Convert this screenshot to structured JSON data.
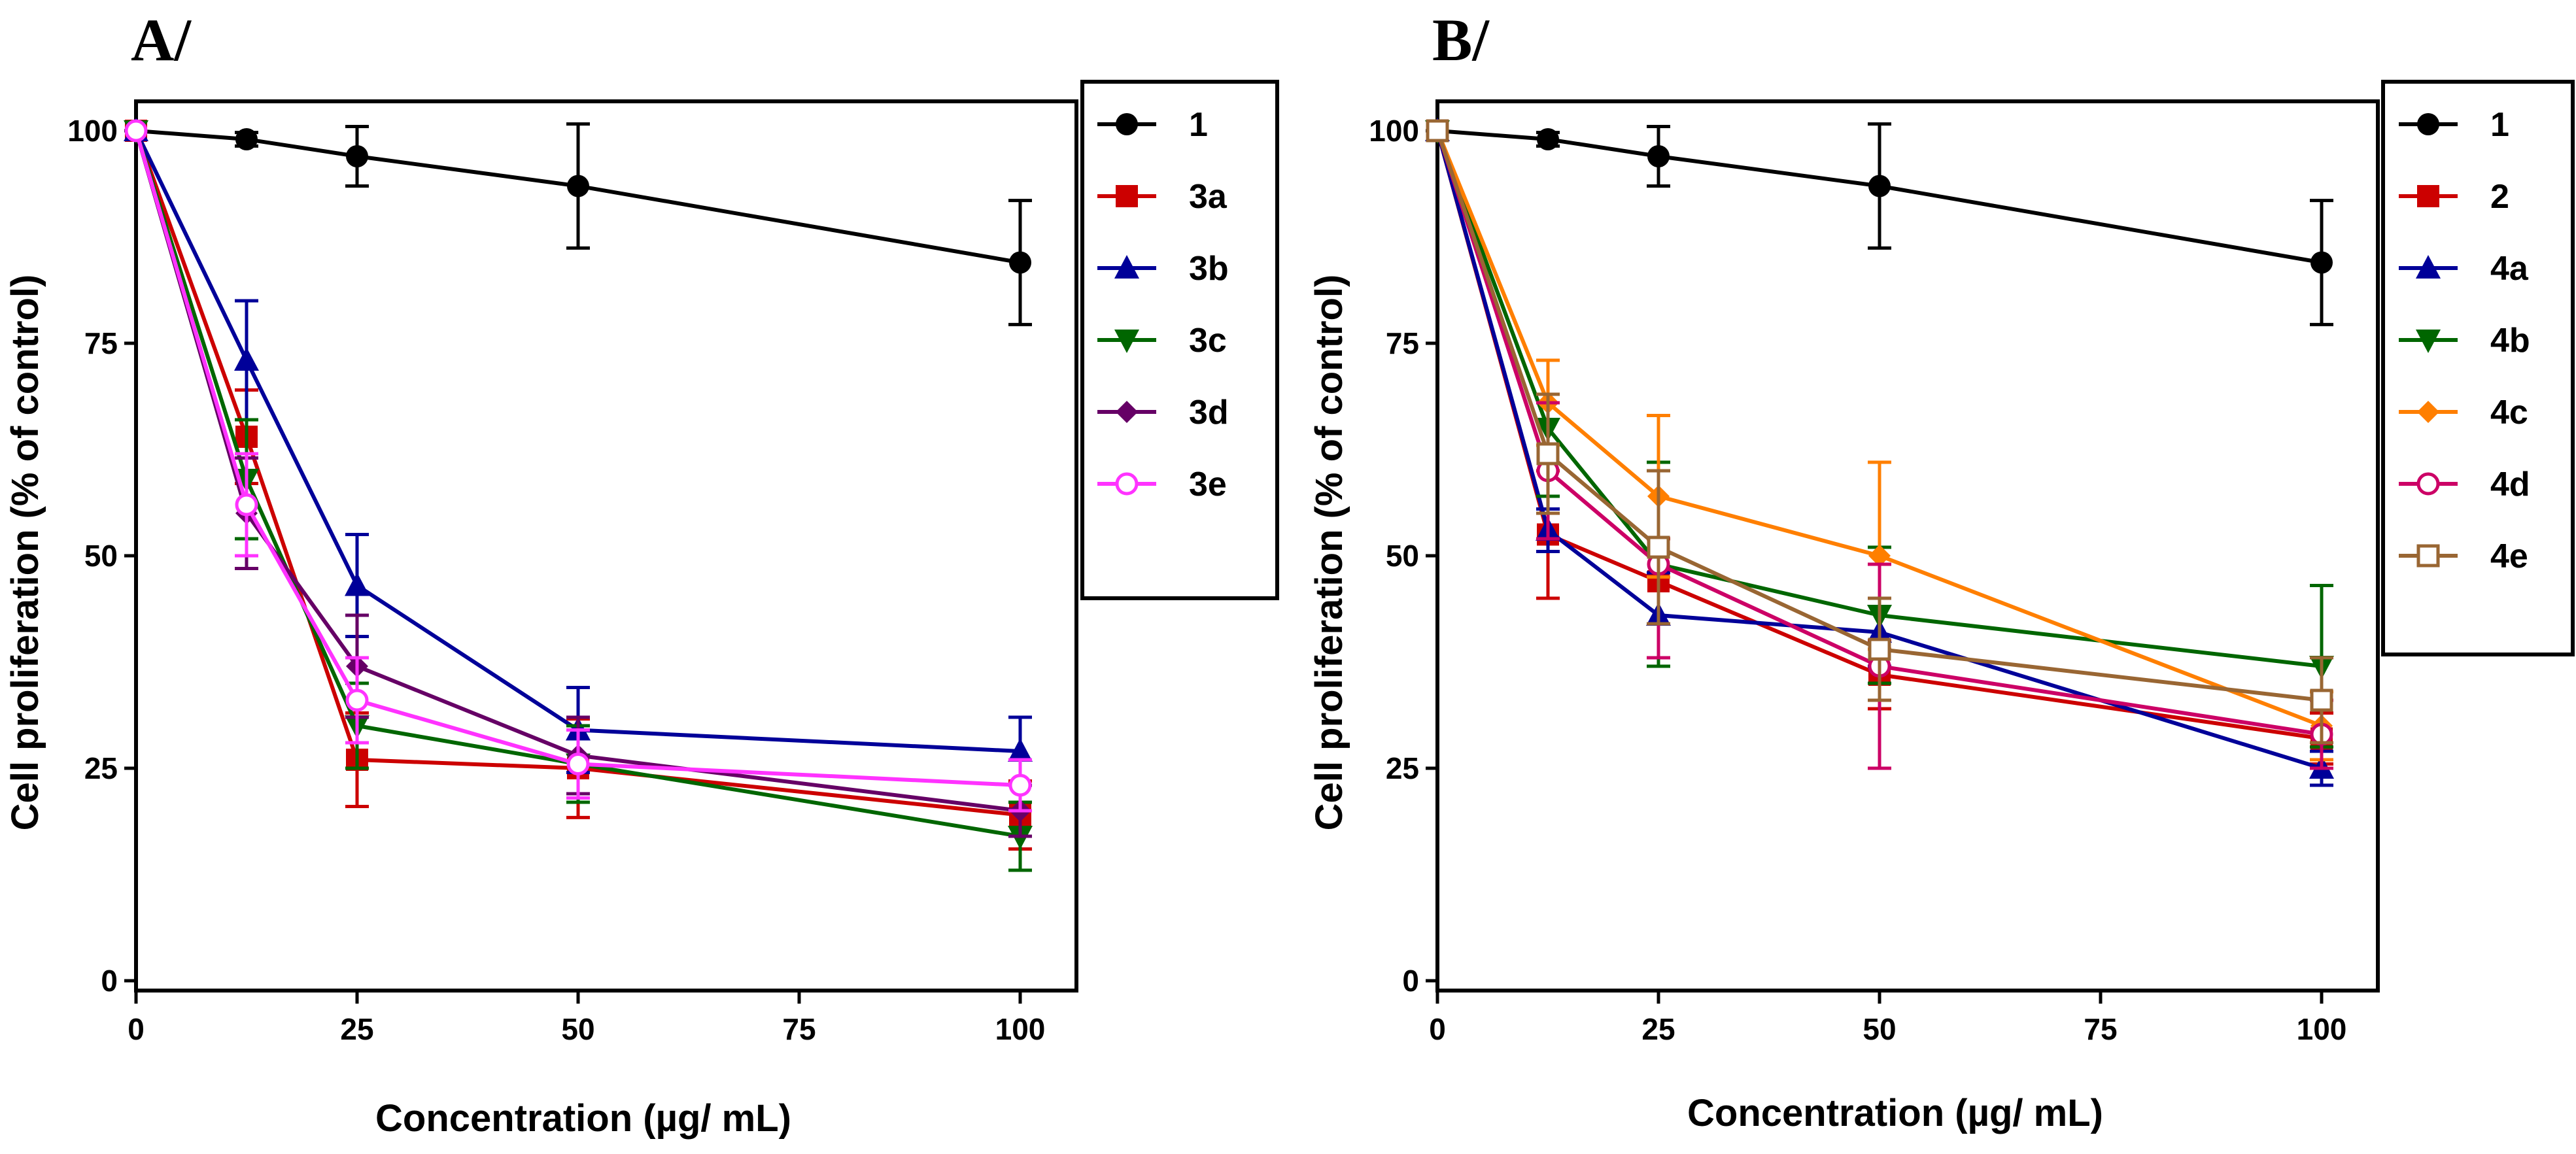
{
  "chart_data": [
    {
      "type": "line",
      "panel_label": "A/",
      "xlabel": "Concentration (µg/ mL)",
      "ylabel": "Cell proliferation (% of control)",
      "xlim": [
        0,
        100
      ],
      "ylim": [
        0,
        100
      ],
      "x_ticks": [
        "0",
        "25",
        "50",
        "75",
        "100"
      ],
      "y_ticks": [
        "0",
        "25",
        "50",
        "75",
        "100"
      ],
      "x": [
        0,
        12.5,
        25,
        50,
        100
      ],
      "legend_position": "right",
      "series": [
        {
          "name": "1",
          "color": "#000000",
          "marker": "circle-filled",
          "values": [
            100,
            99,
            97,
            93.5,
            84.5
          ],
          "errors": [
            0,
            0.8,
            3.5,
            7.3,
            7.3
          ]
        },
        {
          "name": "3a",
          "color": "#cc0000",
          "marker": "square-filled",
          "values": [
            100,
            64,
            26,
            25,
            19.5
          ],
          "errors": [
            0,
            5.5,
            5.5,
            5.8,
            4
          ]
        },
        {
          "name": "3b",
          "color": "#000099",
          "marker": "triangle-up",
          "values": [
            100,
            73,
            46.5,
            29.5,
            27
          ],
          "errors": [
            0,
            7,
            6,
            5,
            4
          ]
        },
        {
          "name": "3c",
          "color": "#006600",
          "marker": "triangle-down",
          "values": [
            100,
            59,
            30,
            25.5,
            17
          ],
          "errors": [
            0,
            7,
            5,
            4.5,
            4
          ]
        },
        {
          "name": "3d",
          "color": "#660066",
          "marker": "diamond-filled",
          "values": [
            100,
            55,
            37,
            26.5,
            20
          ],
          "errors": [
            0,
            6.5,
            6,
            4.5,
            3
          ]
        },
        {
          "name": "3e",
          "color": "#ff33ff",
          "marker": "circle-open",
          "values": [
            100,
            56,
            33,
            25.5,
            23
          ],
          "errors": [
            0,
            6,
            5,
            4,
            3
          ]
        }
      ]
    },
    {
      "type": "line",
      "panel_label": "B/",
      "xlabel": "Concentration (µg/ mL)",
      "ylabel": "Cell proliferation (% of control)",
      "xlim": [
        0,
        100
      ],
      "ylim": [
        0,
        100
      ],
      "x_ticks": [
        "0",
        "25",
        "50",
        "75",
        "100"
      ],
      "y_ticks": [
        "0",
        "25",
        "50",
        "75",
        "100"
      ],
      "x": [
        0,
        12.5,
        25,
        50,
        100
      ],
      "legend_position": "right",
      "series": [
        {
          "name": "1",
          "color": "#000000",
          "marker": "circle-filled",
          "values": [
            100,
            99,
            97,
            93.5,
            84.5
          ],
          "errors": [
            0,
            0.8,
            3.5,
            7.3,
            7.3
          ]
        },
        {
          "name": "2",
          "color": "#cc0000",
          "marker": "square-filled",
          "values": [
            100,
            52.5,
            47,
            36,
            28.5
          ],
          "errors": [
            0,
            7.5,
            5,
            4,
            3
          ]
        },
        {
          "name": "4a",
          "color": "#000099",
          "marker": "triangle-up",
          "values": [
            100,
            53,
            43,
            41,
            25
          ],
          "errors": [
            0,
            2.5,
            5,
            4,
            2
          ]
        },
        {
          "name": "4b",
          "color": "#006600",
          "marker": "triangle-down",
          "values": [
            100,
            65,
            49,
            43,
            37
          ],
          "errors": [
            0,
            8,
            12,
            8,
            9.5
          ]
        },
        {
          "name": "4c",
          "color": "#ff7f00",
          "marker": "diamond-filled",
          "values": [
            100,
            68,
            57,
            50,
            30
          ],
          "errors": [
            0,
            5,
            9.5,
            11,
            4
          ]
        },
        {
          "name": "4d",
          "color": "#cc0066",
          "marker": "circle-open",
          "values": [
            100,
            60,
            49,
            37,
            29
          ],
          "errors": [
            0,
            8,
            11,
            12,
            4
          ]
        },
        {
          "name": "4e",
          "color": "#996633",
          "marker": "square-open",
          "values": [
            100,
            62,
            51,
            39,
            33
          ],
          "errors": [
            0,
            7,
            9,
            6,
            5
          ]
        }
      ]
    }
  ]
}
